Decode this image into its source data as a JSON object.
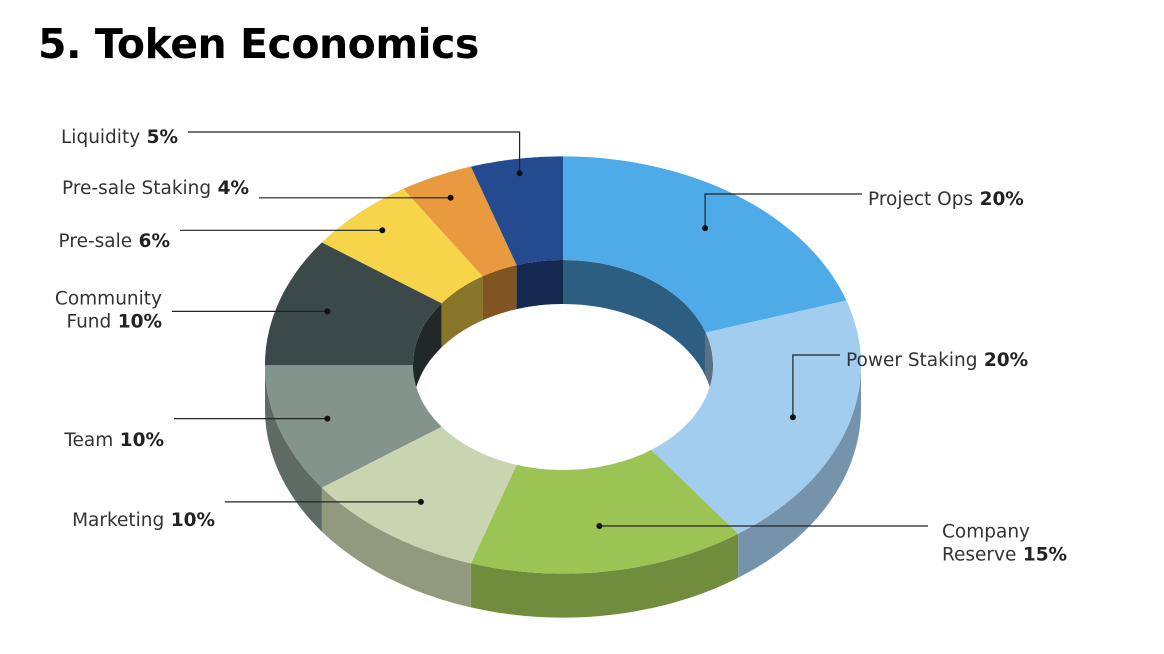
{
  "page": {
    "heading": "5. Token Economics"
  },
  "chart_data": {
    "type": "pie",
    "style": "3d-donut",
    "title": "",
    "slices": [
      {
        "label": [
          "Project Ops"
        ],
        "value": 20,
        "value_label": "20%",
        "color": "#4faae8",
        "anchor": "right"
      },
      {
        "label": [
          "Power Staking"
        ],
        "value": 20,
        "value_label": "20%",
        "color": "#a2cdef",
        "anchor": "right"
      },
      {
        "label": [
          "Company",
          "Reserve"
        ],
        "value": 15,
        "value_label": "15%",
        "color": "#9bc455",
        "anchor": "right"
      },
      {
        "label": [
          "Marketing"
        ],
        "value": 10,
        "value_label": "10%",
        "color": "#c9d4b0",
        "anchor": "left"
      },
      {
        "label": [
          "Team"
        ],
        "value": 10,
        "value_label": "10%",
        "color": "#82948c",
        "anchor": "left"
      },
      {
        "label": [
          "Community",
          "Fund"
        ],
        "value": 10,
        "value_label": "10%",
        "color": "#3b4a49",
        "anchor": "left"
      },
      {
        "label": [
          "Pre-sale"
        ],
        "value": 6,
        "value_label": "6%",
        "color": "#f7d54a",
        "anchor": "left"
      },
      {
        "label": [
          "Pre-sale Staking"
        ],
        "value": 4,
        "value_label": "4%",
        "color": "#e99a3e",
        "anchor": "left"
      },
      {
        "label": [
          "Liquidity"
        ],
        "value": 5,
        "value_label": "5%",
        "color": "#244a8f",
        "anchor": "left"
      }
    ],
    "legend": "none"
  }
}
